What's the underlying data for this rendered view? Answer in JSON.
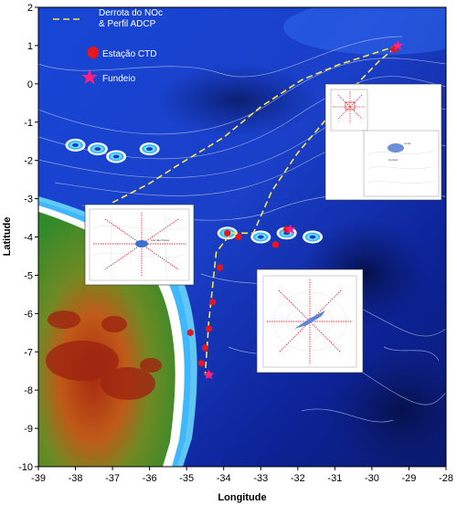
{
  "colors": {
    "ocean_deep": "#0a1a8c",
    "ocean_mid": "#1436c8",
    "ocean_light": "#2f6cf0",
    "shelf": "#3fb8ff",
    "shelf_edge": "#7fe8ff",
    "coast_white": "#ffffff",
    "land_green": "#3f9a2e",
    "land_red": "#b42a10",
    "track": "#f5e84a",
    "station": "#e8141e",
    "mooring": "#ff2080"
  },
  "chart_data": {
    "type": "map",
    "xlabel": "Longitude",
    "ylabel": "Latitude",
    "xlim": [
      -39,
      -28
    ],
    "ylim": [
      -10,
      2
    ],
    "x_ticks": [
      "-39",
      "-38",
      "-37",
      "-36",
      "-35",
      "-34",
      "-33",
      "-32",
      "-31",
      "-30",
      "-29",
      "-28"
    ],
    "y_ticks": [
      "2",
      "1",
      "0",
      "-1",
      "-2",
      "-3",
      "-4",
      "-5",
      "-6",
      "-7",
      "-8",
      "-9",
      "-10"
    ],
    "legend": {
      "track_label_line1": "Derrota do NOc",
      "track_label_line2": "& Perfil ADCP",
      "station_label": "Estação CTD",
      "mooring_label": "Fundeio"
    },
    "track": [
      [
        -37.0,
        -3.1
      ],
      [
        -36.0,
        -2.6
      ],
      [
        -35.2,
        -2.1
      ],
      [
        -34.0,
        -1.4
      ],
      [
        -33.0,
        -0.6
      ],
      [
        -31.9,
        0.1
      ],
      [
        -30.9,
        0.5
      ],
      [
        -29.3,
        1.0
      ],
      [
        -29.8,
        0.6
      ],
      [
        -30.3,
        0.1
      ],
      [
        -31.3,
        -1.0
      ],
      [
        -32.0,
        -1.8
      ],
      [
        -32.7,
        -2.8
      ],
      [
        -33.2,
        -3.9
      ],
      [
        -33.8,
        -3.9
      ],
      [
        -34.2,
        -4.4
      ],
      [
        -34.4,
        -6.2
      ],
      [
        -34.5,
        -7.6
      ]
    ],
    "ctd_stations": [
      [
        -29.4,
        0.9
      ],
      [
        -32.3,
        -3.8
      ],
      [
        -32.6,
        -4.2
      ],
      [
        -33.9,
        -3.9
      ],
      [
        -33.6,
        -4.0
      ],
      [
        -34.1,
        -4.8
      ],
      [
        -34.3,
        -5.7
      ],
      [
        -34.4,
        -6.4
      ],
      [
        -34.9,
        -6.5
      ],
      [
        -34.5,
        -6.9
      ],
      [
        -34.6,
        -7.3
      ],
      [
        -34.4,
        -7.6
      ]
    ],
    "moorings": [
      [
        -29.3,
        1.0
      ],
      [
        -32.2,
        -3.8
      ],
      [
        -34.4,
        -7.6
      ]
    ],
    "islands": [
      [
        -38.0,
        -1.6
      ],
      [
        -37.4,
        -1.7
      ],
      [
        -36.9,
        -1.9
      ],
      [
        -36.0,
        -1.7
      ],
      [
        -33.9,
        -3.9
      ],
      [
        -33.0,
        -4.0
      ],
      [
        -32.3,
        -3.9
      ],
      [
        -31.6,
        -4.0
      ]
    ],
    "insets": [
      {
        "id": "inset-rocas",
        "label": "Atol das Rocas"
      },
      {
        "id": "inset-spsp",
        "label": ""
      },
      {
        "id": "inset-fn",
        "label": ""
      }
    ],
    "grid": false,
    "legend_placement": "top-left"
  }
}
